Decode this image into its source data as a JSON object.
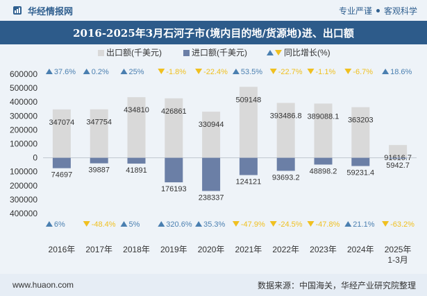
{
  "header": {
    "brand": "华经情报网",
    "tag1": "专业严谨",
    "tag2": "客观科学"
  },
  "footer": {
    "site": "www.huaon.com",
    "source": "数据来源：中国海关，华经产业研究院整理"
  },
  "colors": {
    "export": "#d9d9d9",
    "import": "#6b7fa6",
    "up": "#4a7fb0",
    "down": "#f0c020",
    "title_bg": "#2d5b8a"
  },
  "chart_data": {
    "type": "bar",
    "title": "2016-2025年3月石河子市(境内目的地/货源地)进、出口额",
    "categories": [
      "2016年",
      "2017年",
      "2018年",
      "2019年",
      "2020年",
      "2021年",
      "2022年",
      "2023年",
      "2024年",
      "2025年 1-3月"
    ],
    "series": [
      {
        "name": "出口额(千美元)",
        "values": [
          347074,
          347754,
          434810,
          426861,
          330944,
          509148,
          393486.8,
          389088.1,
          363203,
          91616.7
        ],
        "labels": [
          "347074",
          "347754",
          "434810",
          "426861",
          "330944",
          "509148",
          "393486.8",
          "389088.1",
          "363203",
          "91616.7"
        ],
        "yoy": [
          37.6,
          0.2,
          25,
          -1.8,
          -22.4,
          53.5,
          -22.7,
          -1.1,
          -6.7,
          18.6
        ],
        "yoy_labels": [
          "37.6%",
          "0.2%",
          "25%",
          "-1.8%",
          "-22.4%",
          "53.5%",
          "-22.7%",
          "-1.1%",
          "-6.7%",
          "18.6%"
        ]
      },
      {
        "name": "进口额(千美元)",
        "values": [
          74697,
          39887,
          41891,
          176193,
          238337,
          124121,
          93693.2,
          48898.2,
          59231.4,
          5942.7
        ],
        "labels": [
          "74697",
          "39887",
          "41891",
          "176193",
          "238337",
          "124121",
          "93693.2",
          "48898.2",
          "59231.4",
          "5942.7"
        ],
        "yoy": [
          6,
          -48.4,
          5,
          320.6,
          35.3,
          -47.9,
          -24.5,
          -47.8,
          21.1,
          -63.2
        ],
        "yoy_labels": [
          "6%",
          "-48.4%",
          "5%",
          "320.6%",
          "35.3%",
          "-47.9%",
          "-24.5%",
          "-47.8%",
          "21.1%",
          "-63.2%"
        ]
      }
    ],
    "yoy_legend": "同比增长(%)",
    "ylim": [
      -400000,
      600000
    ],
    "yticks": [
      -400000,
      -300000,
      -200000,
      -100000,
      0,
      100000,
      200000,
      300000,
      400000,
      500000,
      600000
    ],
    "ytick_labels": [
      "400000",
      "300000",
      "200000",
      "100000",
      "0",
      "100000",
      "200000",
      "300000",
      "400000",
      "500000",
      "600000"
    ],
    "legend_position": "top-center",
    "grid": false
  }
}
